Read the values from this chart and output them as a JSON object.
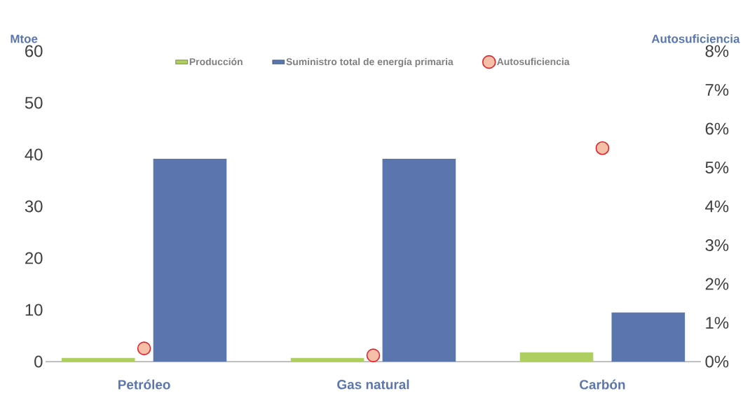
{
  "chart_data": {
    "type": "bar",
    "ylabel": "Mtoe",
    "y2label": "Autosuficiencia",
    "categories": [
      "Petróleo",
      "Gas natural",
      "Carbón"
    ],
    "series": [
      {
        "name": "Producción",
        "color": "#aecf5f",
        "values": [
          0.7,
          0.7,
          1.8
        ]
      },
      {
        "name": "Suministro total de energía primaria",
        "color": "#5b76ae",
        "values": [
          39.2,
          39.2,
          9.5
        ]
      },
      {
        "name": "Autosuficiencia",
        "type": "scatter",
        "axis": "y2",
        "marker": "circle",
        "color": "#f5bfa8",
        "values": [
          0.34,
          0.16,
          5.5
        ]
      }
    ],
    "ylim": [
      0,
      60
    ],
    "yticks": [
      0,
      10,
      20,
      30,
      40,
      50,
      60
    ],
    "y2lim": [
      0,
      8
    ],
    "y2ticks": [
      {
        "value": 0,
        "label": "0%"
      },
      {
        "value": 1,
        "label": "1%"
      },
      {
        "value": 2,
        "label": "2%"
      },
      {
        "value": 3,
        "label": "3%"
      },
      {
        "value": 4,
        "label": "4%"
      },
      {
        "value": 5,
        "label": "5%"
      },
      {
        "value": 6,
        "label": "6%"
      },
      {
        "value": 7,
        "label": "7%"
      },
      {
        "value": 8,
        "label": "8%"
      }
    ],
    "grid": false,
    "legend": "top"
  }
}
